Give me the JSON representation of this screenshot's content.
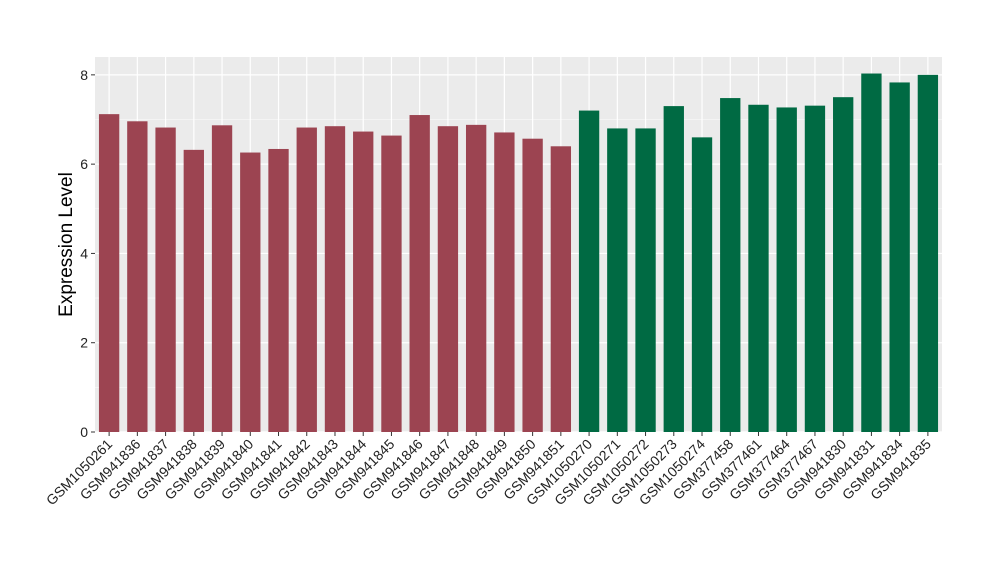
{
  "chart_data": {
    "type": "bar",
    "title": "",
    "xlabel": "",
    "ylabel": "Expression Level",
    "ylim": [
      0,
      8.4
    ],
    "yticks": [
      0,
      2,
      4,
      6,
      8
    ],
    "grid": true,
    "legend": "none",
    "colors": {
      "group_a": "#9c4451",
      "group_b": "#006a43",
      "panel_bg": "#ebebeb",
      "grid_major": "#ffffff"
    },
    "categories": [
      "GSM1050261",
      "GSM941836",
      "GSM941837",
      "GSM941838",
      "GSM941839",
      "GSM941840",
      "GSM941841",
      "GSM941842",
      "GSM941843",
      "GSM941844",
      "GSM941845",
      "GSM941846",
      "GSM941847",
      "GSM941848",
      "GSM941849",
      "GSM941850",
      "GSM941851",
      "GSM1050270",
      "GSM1050271",
      "GSM1050272",
      "GSM1050273",
      "GSM1050274",
      "GSM377458",
      "GSM377461",
      "GSM377464",
      "GSM377467",
      "GSM941830",
      "GSM941831",
      "GSM941834",
      "GSM941835"
    ],
    "values": [
      7.12,
      6.96,
      6.82,
      6.32,
      6.87,
      6.26,
      6.34,
      6.82,
      6.85,
      6.73,
      6.64,
      7.1,
      6.85,
      6.88,
      6.71,
      6.57,
      6.4,
      7.2,
      6.8,
      6.8,
      7.3,
      6.6,
      7.48,
      7.33,
      7.27,
      7.31,
      7.5,
      8.03,
      7.83,
      8.0
    ],
    "groups": [
      "a",
      "a",
      "a",
      "a",
      "a",
      "a",
      "a",
      "a",
      "a",
      "a",
      "a",
      "a",
      "a",
      "a",
      "a",
      "a",
      "a",
      "b",
      "b",
      "b",
      "b",
      "b",
      "b",
      "b",
      "b",
      "b",
      "b",
      "b",
      "b",
      "b"
    ]
  }
}
